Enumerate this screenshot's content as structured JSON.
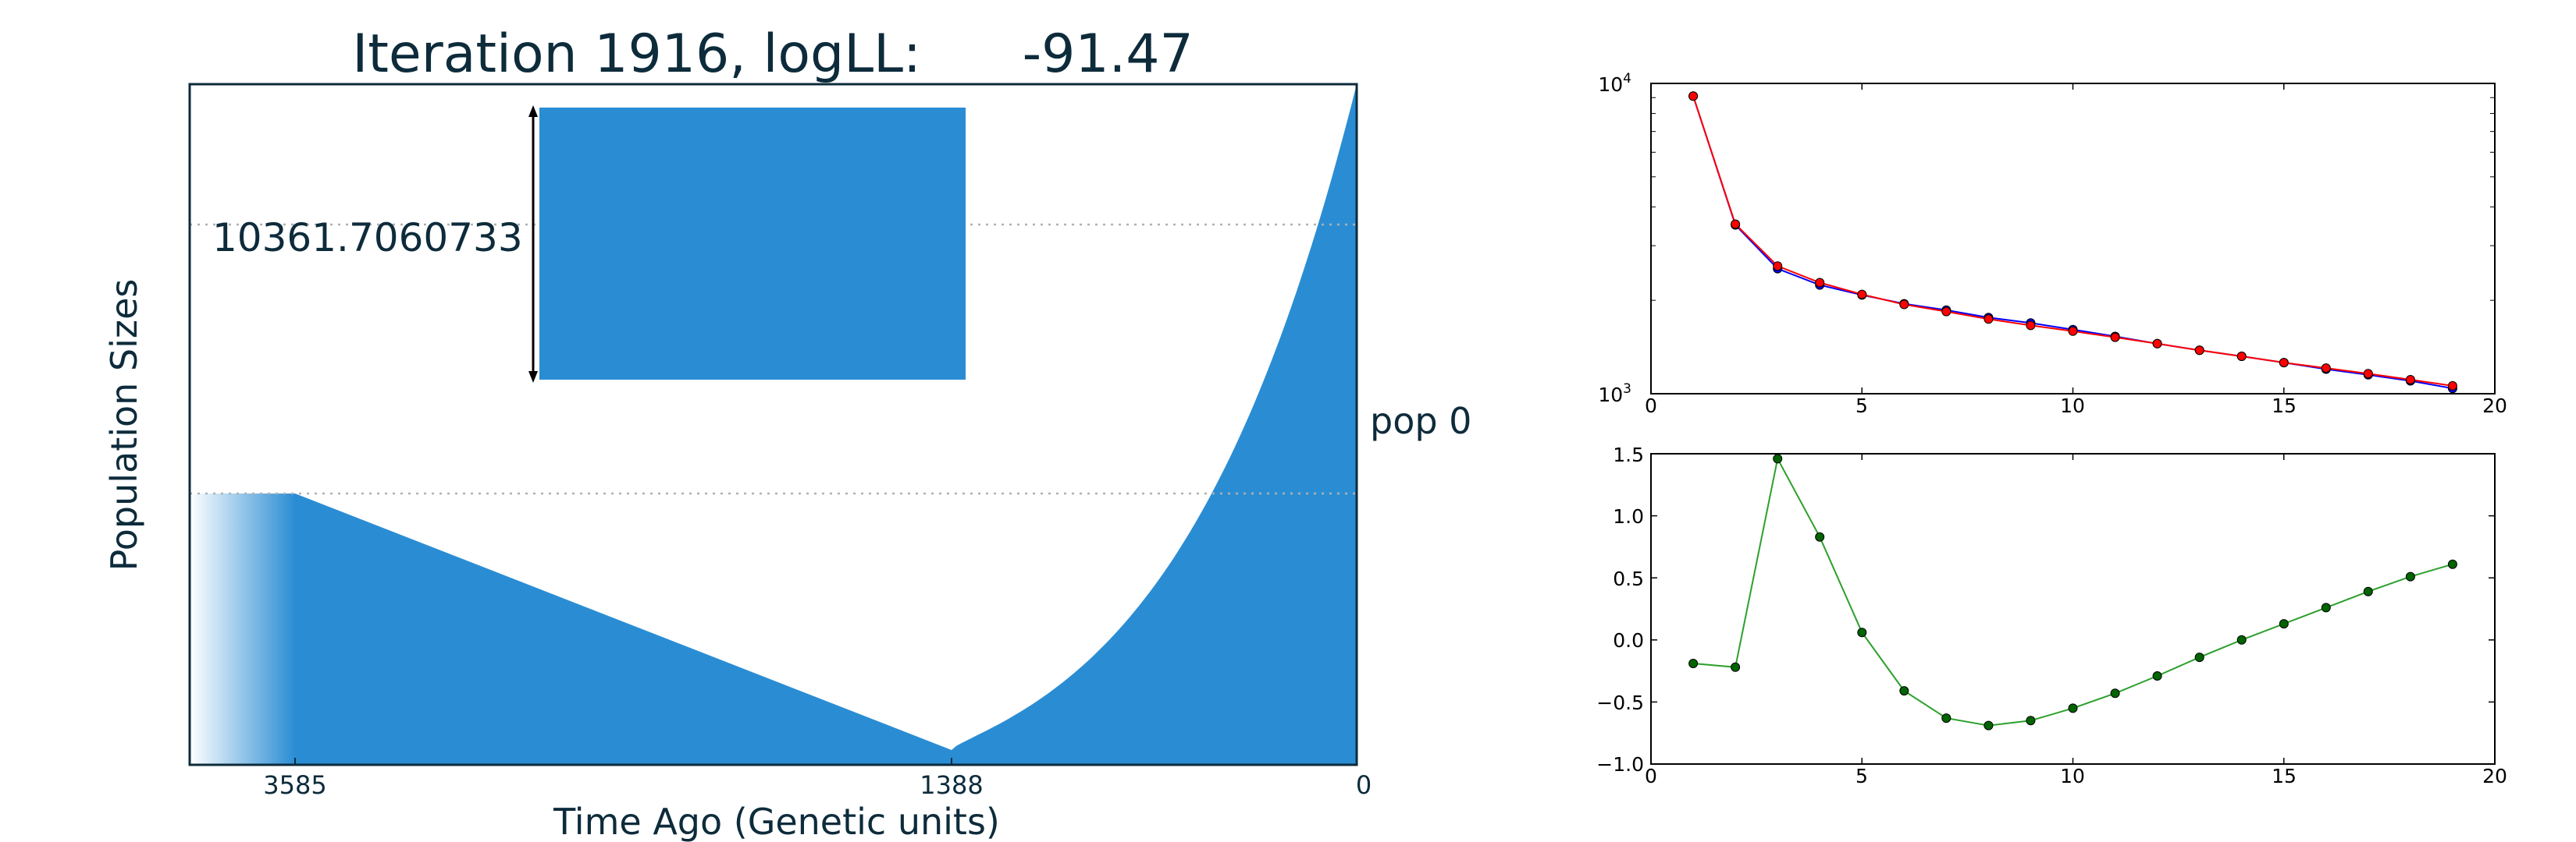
{
  "chart_data": [
    {
      "type": "area",
      "title": "Iteration 1916, logLL:      -91.47",
      "xlabel": "Time Ago (Genetic units)",
      "ylabel": "Population Sizes",
      "x_ticks": [
        "3585",
        "1388",
        "0"
      ],
      "series_label": "pop 0",
      "scale_bar_label": "10361.7060733",
      "fill_color": "#2a8dd4",
      "text_color": "#0d2b3b",
      "reference_lines": "dotted",
      "epochs": [
        {
          "from_time": 0,
          "to_time": 1388,
          "shape": "exponential",
          "size_start": "max",
          "size_end": "min"
        },
        {
          "from_time": 1388,
          "to_time": 3585,
          "shape": "linear",
          "size_start": "min",
          "size_end": "ancestral"
        },
        {
          "from_time": 3585,
          "shape": "constant",
          "size": "ancestral"
        }
      ]
    },
    {
      "type": "line",
      "yscale": "log",
      "xlim": [
        0,
        20
      ],
      "ylim": [
        1000,
        10000
      ],
      "x_ticks": [
        "0",
        "5",
        "10",
        "15",
        "20"
      ],
      "y_ticks": [
        {
          "base": "10",
          "exp": "3"
        },
        {
          "base": "10",
          "exp": "4"
        }
      ],
      "series": [
        {
          "color": "#0000ff",
          "x": [
            1,
            2,
            3,
            4,
            5,
            6,
            7,
            8,
            9,
            10,
            11,
            12,
            13,
            14,
            15,
            16,
            17,
            18,
            19
          ],
          "values": [
            9100,
            3500,
            2530,
            2240,
            2080,
            1950,
            1860,
            1760,
            1690,
            1610,
            1530,
            1450,
            1380,
            1320,
            1260,
            1200,
            1150,
            1100,
            1040
          ]
        },
        {
          "color": "#ff0000",
          "x": [
            1,
            2,
            3,
            4,
            5,
            6,
            7,
            8,
            9,
            10,
            11,
            12,
            13,
            14,
            15,
            16,
            17,
            18,
            19
          ],
          "values": [
            9100,
            3520,
            2580,
            2280,
            2090,
            1940,
            1840,
            1740,
            1660,
            1590,
            1520,
            1450,
            1380,
            1320,
            1260,
            1210,
            1160,
            1110,
            1060
          ]
        }
      ]
    },
    {
      "type": "line",
      "xlim": [
        0,
        20
      ],
      "ylim": [
        -1.0,
        1.5
      ],
      "x_ticks": [
        "0",
        "5",
        "10",
        "15",
        "20"
      ],
      "y_ticks": [
        "−1.0",
        "−0.5",
        "0.0",
        "0.5",
        "1.0",
        "1.5"
      ],
      "series": [
        {
          "color": "#2ca02c",
          "marker_color": "#006400",
          "x": [
            1,
            2,
            3,
            4,
            5,
            6,
            7,
            8,
            9,
            10,
            11,
            12,
            13,
            14,
            15,
            16,
            17,
            18,
            19
          ],
          "values": [
            -0.19,
            -0.22,
            1.46,
            0.83,
            0.06,
            -0.41,
            -0.63,
            -0.69,
            -0.65,
            -0.55,
            -0.43,
            -0.29,
            -0.14,
            0.0,
            0.13,
            0.26,
            0.39,
            0.51,
            0.61
          ]
        }
      ]
    }
  ]
}
